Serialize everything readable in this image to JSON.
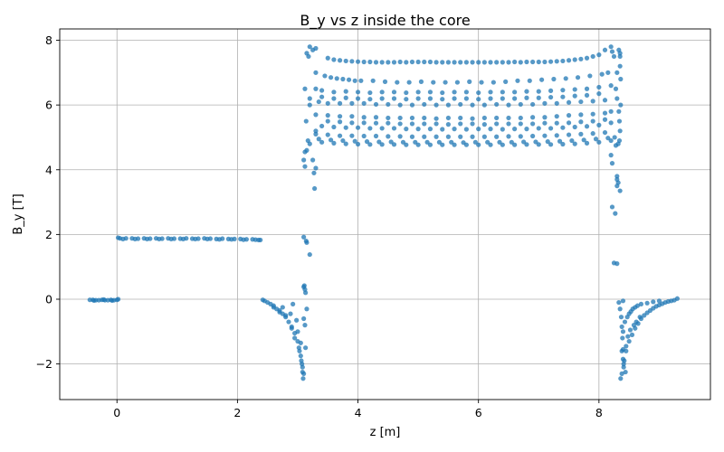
{
  "chart_data": {
    "type": "scatter",
    "title": "B_y vs z inside the core",
    "xlabel": "z [m]",
    "ylabel": "B_y [T]",
    "xlim": [
      -0.95,
      9.85
    ],
    "ylim": [
      -3.1,
      8.35
    ],
    "xticks": [
      0,
      2,
      4,
      6,
      8
    ],
    "yticks": [
      -2,
      0,
      2,
      4,
      6,
      8
    ],
    "xtick_labels": [
      "0",
      "2",
      "4",
      "6",
      "8"
    ],
    "ytick_labels": [
      "−2",
      "0",
      "2",
      "4",
      "6",
      "8"
    ],
    "grid": true,
    "marker_color": "#1f77b4",
    "series": [
      {
        "x": [
          -0.45,
          -0.4,
          -0.35,
          -0.3,
          -0.25,
          -0.2,
          -0.15,
          -0.1,
          -0.05,
          0.0,
          0.02,
          -0.38,
          -0.22,
          -0.08
        ],
        "y": [
          -0.02,
          -0.02,
          -0.03,
          -0.03,
          -0.02,
          -0.03,
          -0.03,
          -0.02,
          -0.03,
          -0.02,
          0.0,
          -0.04,
          -0.01,
          -0.04
        ]
      },
      {
        "x": [
          0.02,
          0.05,
          0.15,
          0.25,
          0.35,
          0.45,
          0.55,
          0.65,
          0.75,
          0.85,
          0.95,
          1.05,
          1.15,
          1.25,
          1.35,
          1.45,
          1.55,
          1.65,
          1.75,
          1.85,
          1.95,
          2.05,
          2.15,
          2.25,
          2.3,
          2.35,
          2.38,
          0.1,
          0.3,
          0.5,
          0.7,
          0.9,
          1.1,
          1.3,
          1.5,
          1.7,
          1.9,
          2.1
        ],
        "y": [
          1.9,
          1.88,
          1.88,
          1.88,
          1.87,
          1.88,
          1.87,
          1.88,
          1.87,
          1.88,
          1.87,
          1.87,
          1.88,
          1.87,
          1.87,
          1.88,
          1.87,
          1.86,
          1.87,
          1.86,
          1.86,
          1.86,
          1.85,
          1.85,
          1.84,
          1.83,
          1.83,
          1.86,
          1.86,
          1.86,
          1.86,
          1.86,
          1.86,
          1.86,
          1.86,
          1.85,
          1.85,
          1.84
        ]
      },
      {
        "x": [
          2.42,
          2.45,
          2.5,
          2.55,
          2.6,
          2.65,
          2.7,
          2.75,
          2.8,
          2.85,
          2.9,
          2.95,
          3.0,
          3.02,
          3.05,
          3.07,
          3.08,
          3.09,
          2.6,
          2.7,
          2.8,
          2.9,
          2.95,
          3.0,
          3.03,
          3.06,
          3.08,
          3.1,
          2.88,
          2.98,
          3.05,
          3.12,
          3.13,
          3.15,
          2.75,
          2.92,
          3.1
        ],
        "y": [
          -0.02,
          -0.05,
          -0.1,
          -0.15,
          -0.2,
          -0.3,
          -0.35,
          -0.45,
          -0.55,
          -0.7,
          -0.85,
          -1.05,
          -1.3,
          -1.5,
          -1.75,
          -2.0,
          -2.25,
          -2.45,
          -0.25,
          -0.4,
          -0.5,
          -0.9,
          -1.2,
          -1.0,
          -1.6,
          -1.9,
          -2.1,
          -2.3,
          -0.45,
          -0.65,
          -1.35,
          -0.8,
          -1.5,
          -0.3,
          -0.25,
          -0.15,
          -0.6
        ]
      },
      {
        "x": [
          3.1,
          3.11,
          3.12,
          3.13,
          3.1,
          3.2,
          3.15,
          3.14,
          3.12,
          3.1,
          3.12,
          3.25,
          3.3,
          3.28,
          3.27,
          3.15,
          3.17,
          3.2,
          3.3,
          3.2,
          3.25,
          3.3,
          3.15,
          3.18,
          3.2,
          3.12,
          3.14,
          3.2
        ],
        "y": [
          0.38,
          0.42,
          0.3,
          0.2,
          1.92,
          1.38,
          1.75,
          1.8,
          4.55,
          4.3,
          4.1,
          4.3,
          4.05,
          3.42,
          3.9,
          4.6,
          4.9,
          4.8,
          5.2,
          7.8,
          7.7,
          7.75,
          7.6,
          7.5,
          6.0,
          6.5,
          5.5,
          6.2
        ]
      },
      {
        "x": [
          3.5,
          3.7,
          3.9,
          4.1,
          4.3,
          4.5,
          4.7,
          4.9,
          5.1,
          5.3,
          5.5,
          5.7,
          5.9,
          6.1,
          6.3,
          6.5,
          6.7,
          6.9,
          7.1,
          7.3,
          7.5,
          7.7,
          7.9,
          8.1,
          3.6,
          3.8,
          4.0,
          4.2,
          4.4,
          4.6,
          4.8,
          5.0,
          5.2,
          5.4,
          5.6,
          5.8,
          6.0,
          6.2,
          6.4,
          6.6,
          6.8,
          7.0,
          7.2,
          7.4,
          7.6,
          7.8,
          8.0,
          3.3,
          3.45,
          3.55,
          3.65,
          3.75,
          3.85,
          3.95,
          4.05,
          4.25,
          4.45,
          4.65,
          4.85,
          5.05,
          5.25,
          5.45,
          5.65,
          5.85,
          6.05,
          6.25,
          6.45,
          6.65,
          6.85,
          7.05,
          7.25,
          7.45,
          7.65,
          7.85,
          8.05,
          8.15,
          3.3,
          3.4,
          3.6,
          3.8,
          4.0,
          4.2,
          4.4,
          4.6,
          4.8,
          5.0,
          5.2,
          5.4,
          5.6,
          5.8,
          6.0,
          6.2,
          6.4,
          6.6,
          6.8,
          7.0,
          7.2,
          7.4,
          7.6,
          7.8,
          8.0,
          8.2,
          3.35,
          3.5,
          3.7,
          3.9,
          4.1,
          4.3,
          4.5,
          4.7,
          4.9,
          5.1,
          5.3,
          5.5,
          5.7,
          5.9,
          6.1,
          6.3,
          6.5,
          6.7,
          6.9,
          7.1,
          7.3,
          7.5,
          7.7,
          7.9,
          8.1,
          3.3,
          3.5,
          3.7,
          3.9,
          4.1,
          4.3,
          4.5,
          4.7,
          4.9,
          5.1,
          5.3,
          5.5,
          5.7,
          5.9,
          6.1,
          6.3,
          6.5,
          6.7,
          6.9,
          7.1,
          7.3,
          7.5,
          7.7,
          7.9,
          8.1,
          8.2,
          3.4,
          3.6,
          3.8,
          4.0,
          4.2,
          4.4,
          4.6,
          4.8,
          5.0,
          5.2,
          5.4,
          5.6,
          5.8,
          6.0,
          6.2,
          6.4,
          6.6,
          6.8,
          7.0,
          7.2,
          7.4,
          7.6,
          7.8,
          8.0,
          8.2,
          3.3,
          3.5,
          3.7,
          3.9,
          4.1,
          4.3,
          4.5,
          4.7,
          4.9,
          5.1,
          5.3,
          5.5,
          5.7,
          5.9,
          6.1,
          6.3,
          6.5,
          6.7,
          6.9,
          7.1,
          7.3,
          7.5,
          7.7,
          7.9,
          8.1,
          3.35,
          3.55,
          3.75,
          3.95,
          4.15,
          4.35,
          4.55,
          4.75,
          4.95,
          5.15,
          5.35,
          5.55,
          5.75,
          5.95,
          6.15,
          6.35,
          6.55,
          6.75,
          6.95,
          7.15,
          7.35,
          7.55,
          7.75,
          7.95,
          8.15,
          3.4,
          3.6,
          3.8,
          4.0,
          4.2,
          4.4,
          4.6,
          4.8,
          5.0,
          5.2,
          5.4,
          5.6,
          5.8,
          6.0,
          6.2,
          6.4,
          6.6,
          6.8,
          7.0,
          7.2,
          7.4,
          7.6,
          7.8,
          8.0,
          8.2,
          3.4,
          3.6,
          3.8,
          4.0,
          4.2,
          4.4,
          4.6,
          4.8,
          5.0,
          5.2,
          5.4,
          5.6,
          5.8,
          6.0,
          6.2,
          6.4,
          6.6,
          6.8,
          7.0,
          7.2,
          7.4,
          7.6,
          7.8,
          8.0,
          3.5,
          3.7,
          3.9,
          4.1,
          4.3,
          4.5,
          4.7,
          4.9,
          5.1,
          5.3,
          5.5,
          5.7,
          5.9,
          6.1,
          6.3,
          6.5,
          6.7,
          6.9,
          7.1,
          7.3,
          7.5,
          7.7,
          7.9,
          8.1
        ],
        "y": [
          7.45,
          7.38,
          7.35,
          7.33,
          7.32,
          7.32,
          7.33,
          7.33,
          7.33,
          7.32,
          7.32,
          7.32,
          7.32,
          7.32,
          7.32,
          7.32,
          7.32,
          7.33,
          7.33,
          7.35,
          7.38,
          7.42,
          7.5,
          7.7,
          7.4,
          7.36,
          7.34,
          7.33,
          7.32,
          7.32,
          7.32,
          7.33,
          7.33,
          7.32,
          7.32,
          7.32,
          7.32,
          7.32,
          7.32,
          7.33,
          7.33,
          7.33,
          7.34,
          7.36,
          7.4,
          7.45,
          7.55,
          7.0,
          6.9,
          6.85,
          6.82,
          6.8,
          6.78,
          6.75,
          6.75,
          6.75,
          6.72,
          6.7,
          6.7,
          6.72,
          6.7,
          6.7,
          6.7,
          6.72,
          6.7,
          6.7,
          6.72,
          6.75,
          6.75,
          6.78,
          6.8,
          6.82,
          6.85,
          6.9,
          6.95,
          7.0,
          6.5,
          6.45,
          6.4,
          6.42,
          6.4,
          6.38,
          6.4,
          6.4,
          6.38,
          6.4,
          6.4,
          6.38,
          6.4,
          6.4,
          6.38,
          6.4,
          6.4,
          6.4,
          6.42,
          6.42,
          6.44,
          6.46,
          6.48,
          6.5,
          6.55,
          6.6,
          6.1,
          6.05,
          6.05,
          6.05,
          6.05,
          6.02,
          6.02,
          6.0,
          6.0,
          6.02,
          6.0,
          6.0,
          6.02,
          6.0,
          6.0,
          6.02,
          6.0,
          6.02,
          6.02,
          6.05,
          6.05,
          6.08,
          6.1,
          6.12,
          6.15,
          5.7,
          5.68,
          5.65,
          5.65,
          5.62,
          5.62,
          5.6,
          5.6,
          5.6,
          5.6,
          5.58,
          5.6,
          5.6,
          5.58,
          5.6,
          5.6,
          5.6,
          5.6,
          5.62,
          5.62,
          5.65,
          5.68,
          5.7,
          5.72,
          5.75,
          5.8,
          5.35,
          5.32,
          5.3,
          5.3,
          5.28,
          5.28,
          5.28,
          5.26,
          5.26,
          5.26,
          5.25,
          5.26,
          5.25,
          5.26,
          5.26,
          5.25,
          5.26,
          5.26,
          5.28,
          5.28,
          5.3,
          5.32,
          5.34,
          5.38,
          5.45,
          5.1,
          5.08,
          5.05,
          5.05,
          5.04,
          5.04,
          5.03,
          5.03,
          5.02,
          5.02,
          5.02,
          5.02,
          5.02,
          5.02,
          5.02,
          5.02,
          5.03,
          5.03,
          5.04,
          5.05,
          5.06,
          5.08,
          5.1,
          5.12,
          5.15,
          4.95,
          4.92,
          4.9,
          4.88,
          4.87,
          4.86,
          4.86,
          4.85,
          4.85,
          4.85,
          4.85,
          4.85,
          4.84,
          4.85,
          4.85,
          4.85,
          4.85,
          4.86,
          4.86,
          4.87,
          4.88,
          4.9,
          4.92,
          4.95,
          4.98,
          4.85,
          4.82,
          4.8,
          4.79,
          4.78,
          4.78,
          4.78,
          4.77,
          4.77,
          4.77,
          4.77,
          4.77,
          4.77,
          4.77,
          4.77,
          4.77,
          4.77,
          4.78,
          4.78,
          4.78,
          4.79,
          4.8,
          4.82,
          4.85,
          4.9,
          6.25,
          6.2,
          6.22,
          6.2,
          6.18,
          6.2,
          6.2,
          6.18,
          6.2,
          6.2,
          6.18,
          6.2,
          6.2,
          6.18,
          6.2,
          6.2,
          6.2,
          6.22,
          6.22,
          6.24,
          6.25,
          6.28,
          6.3,
          6.35,
          5.5,
          5.48,
          5.45,
          5.45,
          5.44,
          5.44,
          5.42,
          5.42,
          5.42,
          5.42,
          5.4,
          5.42,
          5.42,
          5.4,
          5.42,
          5.42,
          5.42,
          5.42,
          5.44,
          5.44,
          5.45,
          5.48,
          5.5,
          5.55
        ]
      },
      {
        "x": [
          8.2,
          8.22,
          8.25,
          8.22,
          8.27,
          8.3,
          8.3,
          8.3,
          8.2,
          8.22,
          8.28,
          8.35,
          8.32,
          8.25,
          8.3,
          8.33,
          8.35,
          8.3,
          8.28,
          8.36,
          8.34,
          8.26,
          8.32,
          8.35,
          8.3,
          8.33,
          8.36,
          8.35,
          8.34,
          8.35
        ],
        "y": [
          7.8,
          7.65,
          7.5,
          2.85,
          2.65,
          3.8,
          3.7,
          3.5,
          4.45,
          4.2,
          4.75,
          3.35,
          3.6,
          1.12,
          1.1,
          7.7,
          7.5,
          7.0,
          6.5,
          6.0,
          5.5,
          5.0,
          4.8,
          7.2,
          6.2,
          5.8,
          6.8,
          5.2,
          4.9,
          7.6
        ]
      },
      {
        "x": [
          8.33,
          8.35,
          8.37,
          8.38,
          8.39,
          8.4,
          8.4,
          8.41,
          8.38,
          8.36,
          8.4,
          8.42,
          8.45,
          8.5,
          8.55,
          8.6,
          8.65,
          8.7,
          8.75,
          8.8,
          8.85,
          8.9,
          8.95,
          9.0,
          9.05,
          9.1,
          9.15,
          9.2,
          9.25,
          9.3,
          8.45,
          8.48,
          8.52,
          8.58,
          8.62,
          8.68,
          8.4,
          8.43,
          8.47,
          8.5,
          8.53,
          8.56,
          8.6,
          8.64,
          8.7,
          8.8,
          8.9,
          9.0,
          8.38,
          8.41,
          8.44
        ],
        "y": [
          -0.1,
          -0.3,
          -0.55,
          -0.85,
          -1.2,
          -1.55,
          -1.85,
          -2.1,
          -2.3,
          -2.45,
          -0.05,
          -1.9,
          -1.6,
          -1.3,
          -1.1,
          -0.9,
          -0.75,
          -0.6,
          -0.5,
          -0.42,
          -0.35,
          -0.28,
          -0.22,
          -0.18,
          -0.14,
          -0.1,
          -0.07,
          -0.05,
          -0.03,
          0.02,
          -1.45,
          -1.15,
          -0.95,
          -0.8,
          -0.7,
          -0.55,
          -1.0,
          -0.7,
          -0.55,
          -0.45,
          -0.38,
          -0.3,
          -0.25,
          -0.2,
          -0.15,
          -0.12,
          -0.08,
          -0.05,
          -1.6,
          -2.0,
          -2.25
        ]
      }
    ]
  }
}
